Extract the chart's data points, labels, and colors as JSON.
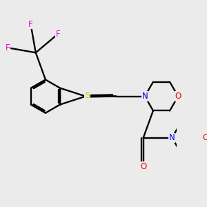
{
  "bg_color": "#ebebeb",
  "bond_color": "#000000",
  "atom_colors": {
    "N": "#0000ee",
    "O": "#ee0000",
    "S": "#cccc00",
    "F": "#ee00ee",
    "C": "#000000"
  },
  "font_size": 8.5
}
